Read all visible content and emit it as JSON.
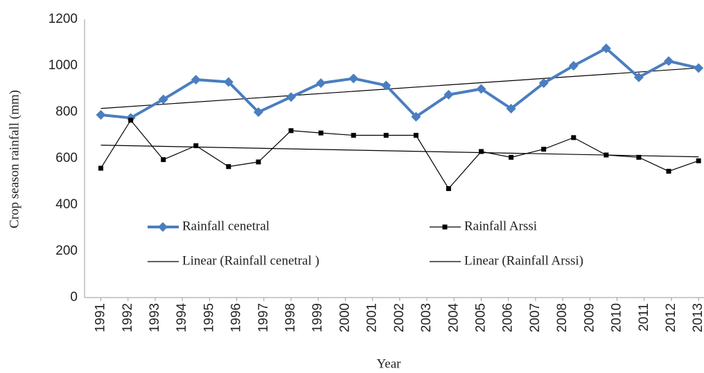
{
  "chart_data": {
    "type": "line",
    "x_label": "Year",
    "y_label": "Crop season rainfall  (mm)",
    "x": [
      1991,
      1992.1,
      1993.3,
      1994.5,
      1995.7,
      1996.8,
      1998.0,
      1999.1,
      2000.3,
      2001.5,
      2002.6,
      2003.8,
      2005.0,
      2006.1,
      2007.3,
      2008.4,
      2009.6,
      2010.8,
      2011.9,
      2013
    ],
    "series": [
      {
        "name": "Rainfall cenetral",
        "color": "#4a7ebf",
        "marker": "diamond",
        "trend_name": "Linear (Rainfall cenetral )",
        "values": [
          788,
          775,
          855,
          940,
          930,
          800,
          865,
          925,
          945,
          915,
          780,
          875,
          900,
          815,
          925,
          1000,
          1075,
          950,
          1020,
          990
        ]
      },
      {
        "name": "Rainfall Arssi",
        "color": "#000000",
        "marker": "square",
        "trend_name": "Linear (Rainfall Arssi)",
        "values": [
          558,
          765,
          595,
          655,
          565,
          585,
          720,
          710,
          700,
          700,
          700,
          470,
          630,
          605,
          640,
          690,
          615,
          605,
          545,
          590
        ]
      }
    ],
    "xlim": [
      1990.4,
      2013.2
    ],
    "xticks": [
      1991,
      1992,
      1993,
      1994,
      1995,
      1996,
      1997,
      1998,
      1999,
      2000,
      2001,
      2002,
      2003,
      2004,
      2005,
      2006,
      2007,
      2008,
      2009,
      2010,
      2011,
      2012,
      2013
    ],
    "ylim": [
      0,
      1200
    ],
    "yticks": [
      0,
      200,
      400,
      600,
      800,
      1000,
      1200
    ],
    "trendline": true
  }
}
